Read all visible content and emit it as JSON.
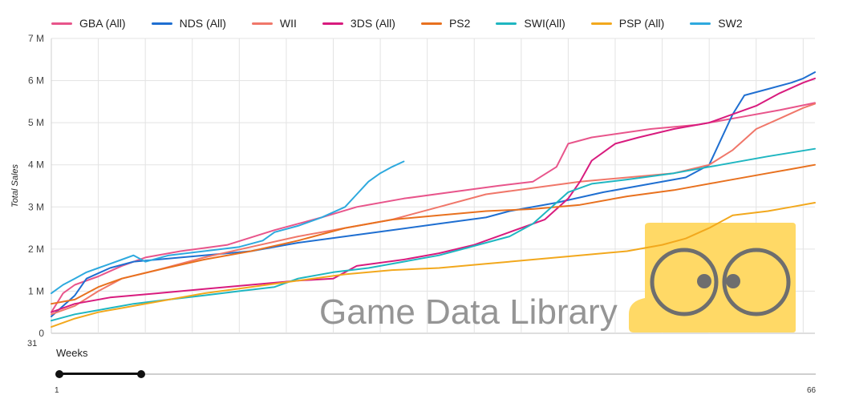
{
  "legend": [
    {
      "name": "GBA (All)",
      "color": "#e8558b"
    },
    {
      "name": "NDS (All)",
      "color": "#1f6fd1"
    },
    {
      "name": "WII",
      "color": "#f0776a"
    },
    {
      "name": "3DS (All)",
      "color": "#d81b7e"
    },
    {
      "name": "PS2",
      "color": "#e8711f"
    },
    {
      "name": "SWI(All)",
      "color": "#1fb6c1"
    },
    {
      "name": "PSP (All)",
      "color": "#f2a81d"
    },
    {
      "name": "SW2",
      "color": "#2ea9de"
    }
  ],
  "chart_data": {
    "type": "line",
    "ylabel": "Total Sales",
    "yticks": [
      "0",
      "1 M",
      "2 M",
      "3 M",
      "4 M",
      "5 M",
      "6 M",
      "7 M"
    ],
    "ylim": [
      0,
      7
    ],
    "xlim": [
      1,
      66
    ],
    "x_start_label": "31",
    "grid": true,
    "legend_position": "top",
    "series": [
      {
        "name": "GBA (All)",
        "color": "#e8558b",
        "points": [
          [
            1,
            0.5
          ],
          [
            2,
            0.95
          ],
          [
            3,
            1.15
          ],
          [
            5,
            1.35
          ],
          [
            7,
            1.6
          ],
          [
            9,
            1.8
          ],
          [
            12,
            1.95
          ],
          [
            16,
            2.1
          ],
          [
            20,
            2.45
          ],
          [
            24,
            2.75
          ],
          [
            27,
            3.0
          ],
          [
            31,
            3.2
          ],
          [
            35,
            3.35
          ],
          [
            39,
            3.5
          ],
          [
            42,
            3.6
          ],
          [
            44,
            3.95
          ],
          [
            45,
            4.5
          ],
          [
            47,
            4.65
          ],
          [
            52,
            4.85
          ],
          [
            56,
            4.95
          ],
          [
            60,
            5.15
          ],
          [
            63,
            5.3
          ],
          [
            66,
            5.47
          ]
        ]
      },
      {
        "name": "NDS (All)",
        "color": "#1f6fd1",
        "points": [
          [
            1,
            0.4
          ],
          [
            3,
            0.9
          ],
          [
            4,
            1.3
          ],
          [
            6,
            1.55
          ],
          [
            8,
            1.7
          ],
          [
            10,
            1.75
          ],
          [
            14,
            1.85
          ],
          [
            18,
            1.95
          ],
          [
            22,
            2.15
          ],
          [
            26,
            2.3
          ],
          [
            30,
            2.45
          ],
          [
            34,
            2.6
          ],
          [
            38,
            2.75
          ],
          [
            40,
            2.9
          ],
          [
            44,
            3.1
          ],
          [
            48,
            3.35
          ],
          [
            52,
            3.55
          ],
          [
            55,
            3.7
          ],
          [
            57,
            4.0
          ],
          [
            58,
            4.6
          ],
          [
            59,
            5.2
          ],
          [
            60,
            5.65
          ],
          [
            62,
            5.8
          ],
          [
            64,
            5.95
          ],
          [
            65,
            6.05
          ],
          [
            66,
            6.2
          ]
        ]
      },
      {
        "name": "WII",
        "color": "#f0776a",
        "points": [
          [
            1,
            0.45
          ],
          [
            3,
            0.65
          ],
          [
            5,
            1.0
          ],
          [
            7,
            1.3
          ],
          [
            10,
            1.5
          ],
          [
            14,
            1.8
          ],
          [
            18,
            2.05
          ],
          [
            22,
            2.3
          ],
          [
            26,
            2.5
          ],
          [
            30,
            2.7
          ],
          [
            34,
            3.0
          ],
          [
            38,
            3.3
          ],
          [
            42,
            3.45
          ],
          [
            46,
            3.6
          ],
          [
            50,
            3.7
          ],
          [
            54,
            3.8
          ],
          [
            57,
            4.0
          ],
          [
            59,
            4.35
          ],
          [
            60,
            4.6
          ],
          [
            61,
            4.85
          ],
          [
            63,
            5.1
          ],
          [
            65,
            5.35
          ],
          [
            66,
            5.45
          ]
        ]
      },
      {
        "name": "3DS (All)",
        "color": "#d81b7e",
        "points": [
          [
            1,
            0.5
          ],
          [
            3,
            0.7
          ],
          [
            6,
            0.85
          ],
          [
            10,
            0.95
          ],
          [
            14,
            1.05
          ],
          [
            18,
            1.15
          ],
          [
            22,
            1.25
          ],
          [
            25,
            1.3
          ],
          [
            27,
            1.6
          ],
          [
            31,
            1.75
          ],
          [
            34,
            1.9
          ],
          [
            37,
            2.1
          ],
          [
            40,
            2.4
          ],
          [
            43,
            2.7
          ],
          [
            45,
            3.2
          ],
          [
            46,
            3.6
          ],
          [
            47,
            4.1
          ],
          [
            48,
            4.3
          ],
          [
            49,
            4.5
          ],
          [
            51,
            4.65
          ],
          [
            54,
            4.85
          ],
          [
            57,
            5.0
          ],
          [
            59,
            5.2
          ],
          [
            61,
            5.4
          ],
          [
            63,
            5.7
          ],
          [
            65,
            5.95
          ],
          [
            66,
            6.05
          ]
        ]
      },
      {
        "name": "PS2",
        "color": "#e8711f",
        "points": [
          [
            1,
            0.7
          ],
          [
            3,
            0.8
          ],
          [
            5,
            1.1
          ],
          [
            7,
            1.3
          ],
          [
            10,
            1.5
          ],
          [
            14,
            1.75
          ],
          [
            18,
            1.95
          ],
          [
            22,
            2.2
          ],
          [
            26,
            2.5
          ],
          [
            30,
            2.7
          ],
          [
            34,
            2.8
          ],
          [
            38,
            2.9
          ],
          [
            42,
            2.95
          ],
          [
            46,
            3.05
          ],
          [
            50,
            3.25
          ],
          [
            54,
            3.4
          ],
          [
            58,
            3.6
          ],
          [
            62,
            3.8
          ],
          [
            64,
            3.9
          ],
          [
            66,
            4.0
          ]
        ]
      },
      {
        "name": "SWI(All)",
        "color": "#1fb6c1",
        "points": [
          [
            1,
            0.3
          ],
          [
            3,
            0.45
          ],
          [
            5,
            0.55
          ],
          [
            8,
            0.7
          ],
          [
            11,
            0.8
          ],
          [
            14,
            0.9
          ],
          [
            17,
            1.0
          ],
          [
            20,
            1.1
          ],
          [
            22,
            1.3
          ],
          [
            25,
            1.45
          ],
          [
            28,
            1.55
          ],
          [
            31,
            1.7
          ],
          [
            34,
            1.85
          ],
          [
            36,
            2.0
          ],
          [
            38,
            2.15
          ],
          [
            40,
            2.3
          ],
          [
            42,
            2.6
          ],
          [
            44,
            3.1
          ],
          [
            45,
            3.35
          ],
          [
            47,
            3.55
          ],
          [
            50,
            3.65
          ],
          [
            54,
            3.8
          ],
          [
            58,
            4.0
          ],
          [
            62,
            4.2
          ],
          [
            66,
            4.38
          ]
        ]
      },
      {
        "name": "PSP (All)",
        "color": "#f2a81d",
        "points": [
          [
            1,
            0.15
          ],
          [
            3,
            0.35
          ],
          [
            5,
            0.5
          ],
          [
            7,
            0.6
          ],
          [
            10,
            0.75
          ],
          [
            14,
            0.95
          ],
          [
            18,
            1.1
          ],
          [
            22,
            1.25
          ],
          [
            26,
            1.4
          ],
          [
            30,
            1.5
          ],
          [
            34,
            1.55
          ],
          [
            38,
            1.65
          ],
          [
            42,
            1.75
          ],
          [
            46,
            1.85
          ],
          [
            50,
            1.95
          ],
          [
            53,
            2.1
          ],
          [
            55,
            2.25
          ],
          [
            57,
            2.5
          ],
          [
            59,
            2.8
          ],
          [
            62,
            2.9
          ],
          [
            64,
            3.0
          ],
          [
            66,
            3.1
          ]
        ]
      },
      {
        "name": "SW2",
        "color": "#2ea9de",
        "points": [
          [
            1,
            0.95
          ],
          [
            2,
            1.15
          ],
          [
            3,
            1.3
          ],
          [
            4,
            1.45
          ],
          [
            5,
            1.55
          ],
          [
            6,
            1.65
          ],
          [
            7,
            1.75
          ],
          [
            8,
            1.85
          ],
          [
            9,
            1.7
          ],
          [
            11,
            1.85
          ],
          [
            14,
            1.95
          ],
          [
            17,
            2.05
          ],
          [
            19,
            2.2
          ],
          [
            20,
            2.4
          ],
          [
            22,
            2.55
          ],
          [
            24,
            2.75
          ],
          [
            26,
            3.0
          ],
          [
            27,
            3.3
          ],
          [
            28,
            3.6
          ],
          [
            29,
            3.8
          ],
          [
            30,
            3.95
          ],
          [
            31,
            4.08
          ]
        ]
      }
    ]
  },
  "watermark": {
    "text": "Game Data Library",
    "logo": "goggles-logo",
    "logo_color": "#ffd966"
  },
  "slider": {
    "title": "Weeks",
    "min_label": "1",
    "max_label": "66",
    "range": [
      1,
      8
    ]
  }
}
